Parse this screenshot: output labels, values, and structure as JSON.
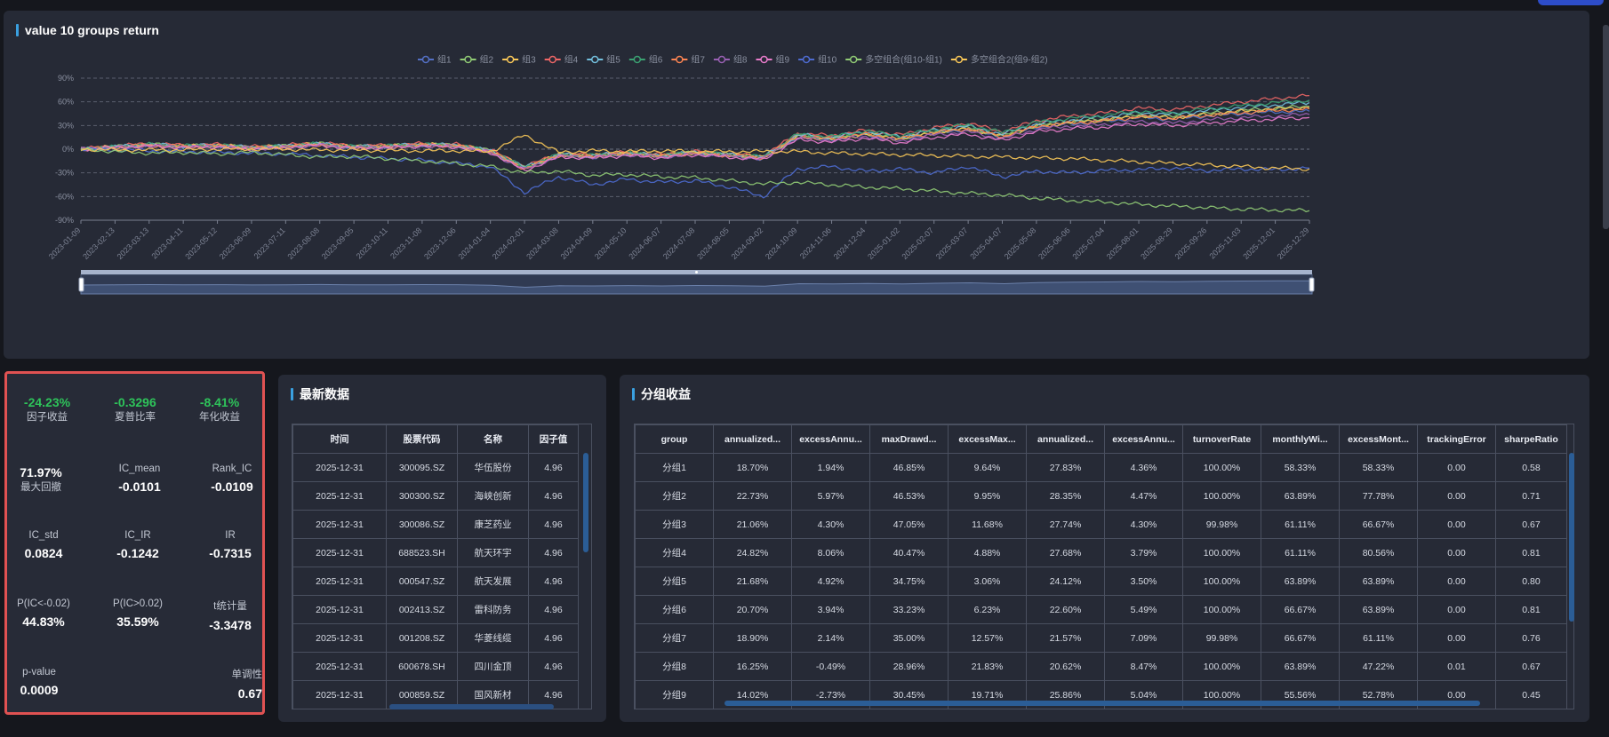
{
  "chart_panel": {
    "title": "value 10 groups return"
  },
  "chart_data": {
    "type": "line",
    "title": "value 10 groups return",
    "legend_position": "top-center",
    "grid": true,
    "ylim": [
      -90,
      90
    ],
    "y_ticks": [
      "90%",
      "60%",
      "30%",
      "0%",
      "-30%",
      "-60%",
      "-90%"
    ],
    "x_ticks": [
      "2023-01-09",
      "2023-02-13",
      "2023-03-13",
      "2023-04-11",
      "2023-05-12",
      "2023-06-09",
      "2023-07-11",
      "2023-08-08",
      "2023-09-05",
      "2023-10-11",
      "2023-11-08",
      "2023-12-06",
      "2024-01-04",
      "2024-02-01",
      "2024-03-08",
      "2024-04-09",
      "2024-05-10",
      "2024-06-07",
      "2024-07-08",
      "2024-08-05",
      "2024-09-02",
      "2024-10-09",
      "2024-11-06",
      "2024-12-04",
      "2025-01-02",
      "2025-02-07",
      "2025-03-07",
      "2025-04-07",
      "2025-05-08",
      "2025-06-06",
      "2025-07-04",
      "2025-08-01",
      "2025-08-29",
      "2025-09-26",
      "2025-11-03",
      "2025-12-01",
      "2025-12-29"
    ],
    "series": [
      {
        "name": "组1",
        "color": "#5470c6",
        "values": [
          0,
          2,
          5,
          3,
          4,
          1,
          3,
          6,
          2,
          3,
          5,
          4,
          -3,
          -25,
          -8,
          -10,
          -6,
          -10,
          -5,
          -8,
          -12,
          15,
          12,
          18,
          12,
          20,
          25,
          15,
          28,
          32,
          35,
          40,
          38,
          42,
          45,
          47,
          48
        ]
      },
      {
        "name": "组2",
        "color": "#91cc75",
        "values": [
          0,
          3,
          6,
          4,
          5,
          2,
          4,
          7,
          3,
          4,
          6,
          5,
          -2,
          -24,
          -7,
          -9,
          -5,
          -9,
          -4,
          -7,
          -11,
          17,
          14,
          20,
          14,
          22,
          27,
          17,
          30,
          35,
          38,
          43,
          41,
          45,
          49,
          52,
          54
        ]
      },
      {
        "name": "组3",
        "color": "#fac858",
        "values": [
          0,
          3,
          5,
          4,
          5,
          2,
          4,
          7,
          3,
          4,
          6,
          5,
          -2,
          -23,
          -7,
          -8,
          -5,
          -8,
          -4,
          -7,
          -10,
          16,
          13,
          19,
          13,
          21,
          26,
          16,
          29,
          34,
          37,
          42,
          40,
          44,
          48,
          51,
          53
        ]
      },
      {
        "name": "组4",
        "color": "#ee6666",
        "values": [
          0,
          4,
          7,
          5,
          6,
          3,
          5,
          8,
          4,
          5,
          7,
          6,
          -1,
          -22,
          -6,
          -7,
          -4,
          -7,
          -3,
          -6,
          -9,
          20,
          17,
          24,
          18,
          27,
          33,
          22,
          36,
          42,
          46,
          52,
          50,
          55,
          60,
          64,
          68
        ]
      },
      {
        "name": "组5",
        "color": "#73c0de",
        "values": [
          0,
          3,
          6,
          4,
          5,
          2,
          4,
          7,
          3,
          4,
          6,
          5,
          -2,
          -23,
          -7,
          -8,
          -5,
          -8,
          -4,
          -7,
          -10,
          18,
          15,
          22,
          16,
          24,
          29,
          19,
          32,
          37,
          41,
          46,
          44,
          49,
          53,
          56,
          59
        ]
      },
      {
        "name": "组6",
        "color": "#3ba272",
        "values": [
          0,
          3,
          6,
          4,
          5,
          2,
          4,
          7,
          3,
          4,
          6,
          5,
          -2,
          -23,
          -7,
          -8,
          -5,
          -8,
          -4,
          -7,
          -10,
          19,
          16,
          23,
          17,
          25,
          31,
          21,
          34,
          39,
          43,
          48,
          46,
          51,
          55,
          59,
          62
        ]
      },
      {
        "name": "组7",
        "color": "#fc8452",
        "values": [
          0,
          2,
          5,
          3,
          4,
          1,
          3,
          6,
          2,
          3,
          5,
          4,
          -3,
          -25,
          -8,
          -9,
          -6,
          -9,
          -5,
          -8,
          -11,
          16,
          13,
          19,
          13,
          21,
          26,
          16,
          29,
          33,
          36,
          41,
          39,
          43,
          46,
          49,
          51
        ]
      },
      {
        "name": "组8",
        "color": "#9a60b4",
        "values": [
          0,
          2,
          4,
          3,
          3,
          1,
          2,
          5,
          2,
          2,
          4,
          3,
          -4,
          -26,
          -9,
          -10,
          -7,
          -10,
          -6,
          -9,
          -12,
          14,
          11,
          16,
          10,
          18,
          22,
          13,
          25,
          29,
          31,
          35,
          33,
          37,
          40,
          42,
          44
        ]
      },
      {
        "name": "组9",
        "color": "#ea7ccc",
        "values": [
          0,
          2,
          4,
          2,
          3,
          0,
          2,
          5,
          1,
          2,
          4,
          3,
          -4,
          -27,
          -10,
          -11,
          -8,
          -11,
          -7,
          -10,
          -13,
          12,
          9,
          14,
          8,
          15,
          19,
          11,
          22,
          26,
          28,
          32,
          30,
          33,
          36,
          38,
          40
        ]
      },
      {
        "name": "组10",
        "color": "#4e6bd1",
        "values": [
          0,
          -1,
          -2,
          -3,
          -4,
          -5,
          -6,
          -8,
          -10,
          -12,
          -14,
          -18,
          -22,
          -55,
          -35,
          -45,
          -38,
          -42,
          -40,
          -48,
          -60,
          -25,
          -22,
          -28,
          -25,
          -30,
          -22,
          -35,
          -28,
          -30,
          -27,
          -26,
          -24,
          -27,
          -25,
          -26,
          -24
        ]
      },
      {
        "name": "多空组合(组10-组1)",
        "color": "#91cc75",
        "values": [
          0,
          -3,
          -5,
          -4,
          -6,
          -4,
          -7,
          -10,
          -9,
          -12,
          -15,
          -18,
          -22,
          -30,
          -28,
          -33,
          -32,
          -35,
          -36,
          -40,
          -44,
          -42,
          -45,
          -48,
          -50,
          -53,
          -56,
          -58,
          -62,
          -65,
          -67,
          -70,
          -72,
          -74,
          -76,
          -77,
          -78
        ]
      },
      {
        "name": "多空组合2(组9-组2)",
        "color": "#fac858",
        "values": [
          0,
          -1,
          -1,
          -1,
          0,
          0,
          0,
          -1,
          -1,
          -2,
          -2,
          -2,
          -3,
          18,
          -4,
          -2,
          -3,
          -2,
          -3,
          -3,
          -3,
          -3,
          -5,
          -6,
          -7,
          -8,
          -9,
          -10,
          -11,
          -12,
          -14,
          -16,
          -18,
          -20,
          -22,
          -24,
          -25
        ]
      }
    ],
    "datazoom_range": [
      0,
      100
    ]
  },
  "metrics": {
    "factor_return": {
      "value": "-24.23%",
      "label": "因子收益"
    },
    "sharpe": {
      "value": "-0.3296",
      "label": "夏普比率"
    },
    "annual_return": {
      "value": "-8.41%",
      "label": "年化收益"
    },
    "max_drawdown": {
      "value": "71.97%",
      "label": "最大回撤"
    },
    "ic_mean": {
      "value": "-0.0101",
      "label": "IC_mean"
    },
    "rank_ic": {
      "value": "-0.0109",
      "label": "Rank_IC"
    },
    "ic_std": {
      "value": "0.0824",
      "label": "IC_std"
    },
    "ic_ir": {
      "value": "-0.1242",
      "label": "IC_IR"
    },
    "ir": {
      "value": "-0.7315",
      "label": "IR"
    },
    "p_ic_neg": {
      "value": "44.83%",
      "label": "P(IC<-0.02)"
    },
    "p_ic_pos": {
      "value": "35.59%",
      "label": "P(IC>0.02)"
    },
    "t_stat": {
      "value": "-3.3478",
      "label": "t统计量"
    },
    "p_value": {
      "value": "0.0009",
      "label": "p-value"
    },
    "monotonic": {
      "value": "0.67",
      "label": "单调性"
    }
  },
  "latest_panel": {
    "title": "最新数据",
    "columns": [
      "时间",
      "股票代码",
      "名称",
      "因子值"
    ],
    "rows": [
      [
        "2025-12-31",
        "300095.SZ",
        "华伍股份",
        "4.96"
      ],
      [
        "2025-12-31",
        "300300.SZ",
        "海峡创新",
        "4.96"
      ],
      [
        "2025-12-31",
        "300086.SZ",
        "康芝药业",
        "4.96"
      ],
      [
        "2025-12-31",
        "688523.SH",
        "航天环宇",
        "4.96"
      ],
      [
        "2025-12-31",
        "000547.SZ",
        "航天发展",
        "4.96"
      ],
      [
        "2025-12-31",
        "002413.SZ",
        "雷科防务",
        "4.96"
      ],
      [
        "2025-12-31",
        "001208.SZ",
        "华菱线缆",
        "4.96"
      ],
      [
        "2025-12-31",
        "600678.SH",
        "四川金顶",
        "4.96"
      ],
      [
        "2025-12-31",
        "000859.SZ",
        "国风新材",
        "4.96"
      ]
    ]
  },
  "group_panel": {
    "title": "分组收益",
    "columns": [
      "group",
      "annualized...",
      "excessAnnu...",
      "maxDrawd...",
      "excessMax...",
      "annualized...",
      "excessAnnu...",
      "turnoverRate",
      "monthlyWi...",
      "excessMont...",
      "trackingError",
      "sharpeRatio"
    ],
    "rows": [
      [
        "分组1",
        "18.70%",
        "1.94%",
        "46.85%",
        "9.64%",
        "27.83%",
        "4.36%",
        "100.00%",
        "58.33%",
        "58.33%",
        "0.00",
        "0.58"
      ],
      [
        "分组2",
        "22.73%",
        "5.97%",
        "46.53%",
        "9.95%",
        "28.35%",
        "4.47%",
        "100.00%",
        "63.89%",
        "77.78%",
        "0.00",
        "0.71"
      ],
      [
        "分组3",
        "21.06%",
        "4.30%",
        "47.05%",
        "11.68%",
        "27.74%",
        "4.30%",
        "99.98%",
        "61.11%",
        "66.67%",
        "0.00",
        "0.67"
      ],
      [
        "分组4",
        "24.82%",
        "8.06%",
        "40.47%",
        "4.88%",
        "27.68%",
        "3.79%",
        "100.00%",
        "61.11%",
        "80.56%",
        "0.00",
        "0.81"
      ],
      [
        "分组5",
        "21.68%",
        "4.92%",
        "34.75%",
        "3.06%",
        "24.12%",
        "3.50%",
        "100.00%",
        "63.89%",
        "63.89%",
        "0.00",
        "0.80"
      ],
      [
        "分组6",
        "20.70%",
        "3.94%",
        "33.23%",
        "6.23%",
        "22.60%",
        "5.49%",
        "100.00%",
        "66.67%",
        "63.89%",
        "0.00",
        "0.81"
      ],
      [
        "分组7",
        "18.90%",
        "2.14%",
        "35.00%",
        "12.57%",
        "21.57%",
        "7.09%",
        "99.98%",
        "66.67%",
        "61.11%",
        "0.00",
        "0.76"
      ],
      [
        "分组8",
        "16.25%",
        "-0.49%",
        "28.96%",
        "21.83%",
        "20.62%",
        "8.47%",
        "100.00%",
        "63.89%",
        "47.22%",
        "0.01",
        "0.67"
      ],
      [
        "分组9",
        "14.02%",
        "-2.73%",
        "30.45%",
        "19.71%",
        "25.86%",
        "5.04%",
        "100.00%",
        "55.56%",
        "52.78%",
        "0.00",
        "0.45"
      ]
    ]
  }
}
